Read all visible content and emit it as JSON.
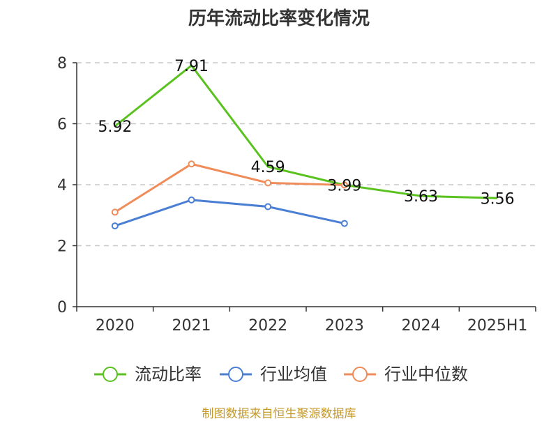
{
  "chart_data": {
    "type": "line",
    "title": "历年流动比率变化情况",
    "categories": [
      "2020",
      "2021",
      "2022",
      "2023",
      "2024",
      "2025H1"
    ],
    "ylim": [
      0,
      8
    ],
    "yticks": [
      0,
      2,
      4,
      6,
      8
    ],
    "grid": true,
    "legend_position": "bottom",
    "series": [
      {
        "name": "流动比率",
        "color": "#5ac21e",
        "values": [
          5.92,
          7.91,
          4.59,
          3.99,
          3.63,
          3.56
        ],
        "show_labels": true,
        "markers": false
      },
      {
        "name": "行业均值",
        "color": "#4a7fd4",
        "values": [
          2.65,
          3.5,
          3.28,
          2.73,
          null,
          null
        ],
        "show_labels": false,
        "markers": true
      },
      {
        "name": "行业中位数",
        "color": "#f08c5a",
        "values": [
          3.1,
          4.68,
          4.06,
          3.99,
          null,
          null
        ],
        "show_labels": false,
        "markers": true
      }
    ]
  },
  "source": "制图数据来自恒生聚源数据库"
}
